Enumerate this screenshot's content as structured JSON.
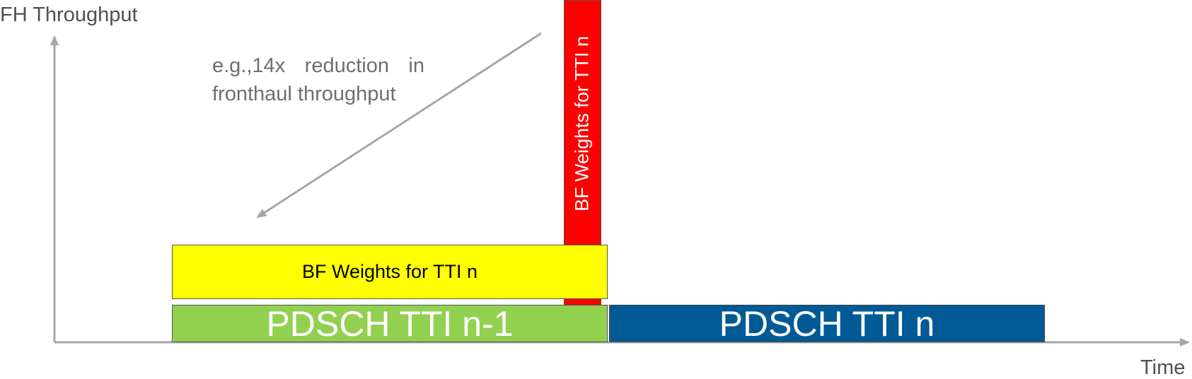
{
  "axes": {
    "y_label": "FH Throughput",
    "x_label": "Time"
  },
  "annotation": {
    "line1": "e.g.,14x reduction in",
    "line2": "fronthaul throughput"
  },
  "blocks": {
    "bf_weights_red": {
      "label": "BF Weights for TTI n",
      "color": "#ff0000"
    },
    "bf_weights_yellow": {
      "label": "BF Weights for TTI n",
      "color": "#ffff00"
    },
    "pdsch_prev": {
      "label": "PDSCH TTI n-1",
      "color": "#92d050"
    },
    "pdsch_curr": {
      "label": "PDSCH TTI n",
      "color": "#005a96"
    }
  }
}
